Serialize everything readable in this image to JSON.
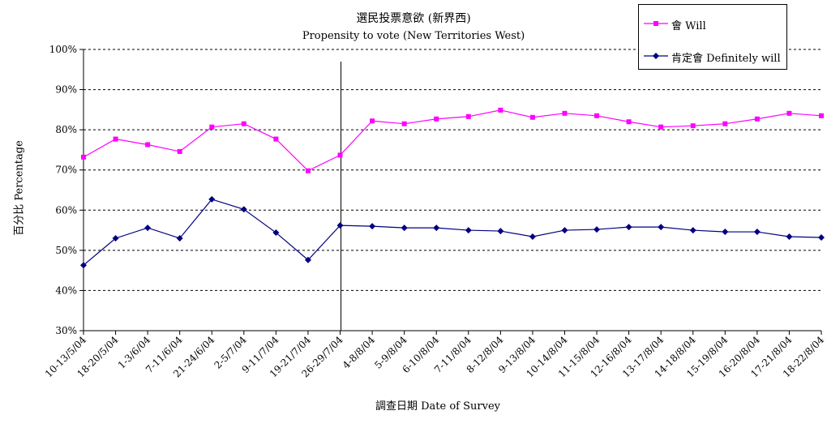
{
  "chart_data": {
    "type": "line",
    "title": "選民投票意欲 (新界西)",
    "subtitle": "Propensity to vote (New Territories West)",
    "xlabel": "調查日期 Date of Survey",
    "ylabel": "百分比 Percentage",
    "ylim": [
      30,
      100
    ],
    "yticks": [
      "30%",
      "40%",
      "50%",
      "60%",
      "70%",
      "80%",
      "90%",
      "100%"
    ],
    "grid": "horizontal dashed",
    "legend": "top-right",
    "categories": [
      "10-13/5/04",
      "18-20/5/04",
      "1-3/6/04",
      "7-11/6/04",
      "21-24/6/04",
      "2-5/7/04",
      "9-11/7/04",
      "19-21/7/04",
      "26-29/7/04",
      "4-8/8/04",
      "5-9/8/04",
      "6-10/8/04",
      "7-11/8/04",
      "8-12/8/04",
      "9-13/8/04",
      "10-14/8/04",
      "11-15/8/04",
      "12-16/8/04",
      "13-17/8/04",
      "14-18/8/04",
      "15-19/8/04",
      "16-20/8/04",
      "17-21/8/04",
      "18-22/8/04"
    ],
    "divider_after_category": "26-29/7/04",
    "series": [
      {
        "name": "會 Will",
        "color": "#ff00ff",
        "marker": "square",
        "values": [
          73.2,
          77.7,
          76.3,
          74.6,
          80.7,
          81.5,
          77.7,
          69.8,
          73.7,
          82.2,
          81.5,
          82.7,
          83.3,
          84.9,
          83.1,
          84.1,
          83.5,
          82.0,
          80.7,
          81.0,
          81.5,
          82.7,
          84.1,
          83.5
        ]
      },
      {
        "name": "肯定會 Definitely will",
        "color": "#000080",
        "marker": "diamond",
        "values": [
          46.3,
          53.0,
          55.6,
          53.0,
          62.7,
          60.2,
          54.4,
          47.6,
          56.2,
          56.0,
          55.6,
          55.6,
          55.0,
          54.8,
          53.4,
          55.0,
          55.2,
          55.8,
          55.8,
          55.0,
          54.6,
          54.6,
          53.4,
          53.2
        ]
      }
    ]
  }
}
